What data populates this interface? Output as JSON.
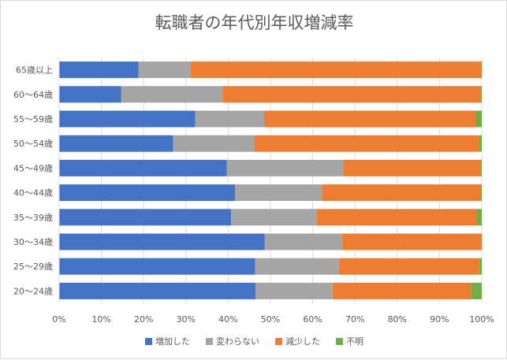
{
  "chart_data": {
    "type": "bar",
    "orientation": "horizontal",
    "stacked": "percent",
    "title": "転職者の年代別年収増減率",
    "categories": [
      "65歳以上",
      "60～64歳",
      "55～59歳",
      "50～54歳",
      "45～49歳",
      "40～44歳",
      "35～39歳",
      "30～34歳",
      "25～29歳",
      "20～24歳"
    ],
    "series": [
      {
        "name": "増加した",
        "color": "#4472c4",
        "values": [
          18.8,
          14.7,
          32.2,
          27.0,
          39.7,
          41.6,
          40.7,
          48.6,
          46.4,
          46.5
        ]
      },
      {
        "name": "変わらない",
        "color": "#a5a5a5",
        "values": [
          12.2,
          24.0,
          16.3,
          19.2,
          27.5,
          20.6,
          20.3,
          18.4,
          19.8,
          18.2
        ]
      },
      {
        "name": "減少した",
        "color": "#ed7d31",
        "values": [
          69.0,
          61.1,
          50.0,
          53.1,
          32.5,
          37.6,
          37.8,
          33.0,
          33.2,
          32.9
        ]
      },
      {
        "name": "不明",
        "color": "#70ad47",
        "values": [
          0.0,
          0.2,
          1.5,
          0.7,
          0.3,
          0.2,
          1.2,
          0.0,
          0.6,
          2.4
        ]
      }
    ],
    "x_axis": {
      "min": 0,
      "max": 100,
      "step": 10,
      "tick_suffix": "%"
    },
    "grid": true,
    "legend_position": "bottom"
  }
}
